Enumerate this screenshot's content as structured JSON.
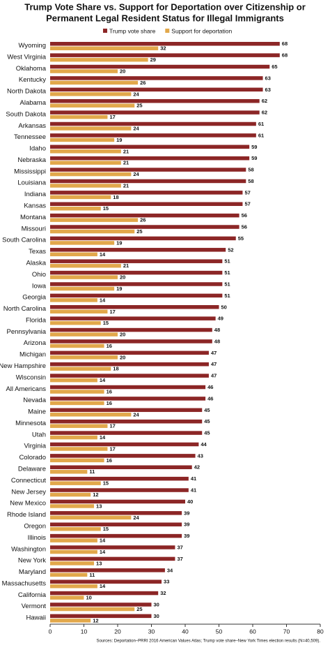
{
  "chart_data": {
    "type": "hbar",
    "title": [
      "Trump Vote Share vs. Support for Deportation over Citizenship or",
      "Permanent Legal Resident Status for Illegal Immigrants"
    ],
    "categories": [
      "Wyoming",
      "West Virginia",
      "Oklahoma",
      "Kentucky",
      "North Dakota",
      "Alabama",
      "South Dakota",
      "Arkansas",
      "Tennessee",
      "Idaho",
      "Nebraska",
      "Mississippi",
      "Louisiana",
      "Indiana",
      "Kansas",
      "Montana",
      "Missouri",
      "South Carolina",
      "Texas",
      "Alaska",
      "Ohio",
      "Iowa",
      "Georgia",
      "North Carolina",
      "Florida",
      "Pennsylvania",
      "Arizona",
      "Michigan",
      "New Hampshire",
      "Wisconsin",
      "All Americans",
      "Nevada",
      "Maine",
      "Minnesota",
      "Utah",
      "Virginia",
      "Colorado",
      "Delaware",
      "Connecticut",
      "New Jersey",
      "New Mexico",
      "Rhode Island",
      "Oregon",
      "Illinois",
      "Washington",
      "New York",
      "Maryland",
      "Massachusetts",
      "California",
      "Vermont",
      "Hawaii"
    ],
    "series": [
      {
        "name": "Trump vote share",
        "color": "#8c2626",
        "values": [
          68,
          68,
          65,
          63,
          63,
          62,
          62,
          61,
          61,
          59,
          59,
          58,
          58,
          57,
          57,
          56,
          56,
          55,
          52,
          51,
          51,
          51,
          51,
          50,
          49,
          48,
          48,
          47,
          47,
          47,
          46,
          46,
          45,
          45,
          45,
          44,
          43,
          42,
          41,
          41,
          40,
          39,
          39,
          39,
          37,
          37,
          34,
          33,
          32,
          30,
          30
        ]
      },
      {
        "name": "Support for deportation",
        "color": "#e2a84b",
        "values": [
          32,
          29,
          20,
          26,
          24,
          25,
          17,
          24,
          19,
          21,
          21,
          24,
          21,
          18,
          15,
          26,
          25,
          19,
          14,
          21,
          20,
          19,
          14,
          17,
          15,
          20,
          16,
          20,
          18,
          14,
          16,
          16,
          24,
          17,
          14,
          17,
          16,
          11,
          15,
          12,
          13,
          24,
          15,
          14,
          14,
          13,
          11,
          14,
          10,
          25,
          12
        ]
      }
    ],
    "xlim": [
      0,
      80
    ],
    "xticks": [
      0,
      10,
      20,
      30,
      40,
      50,
      60,
      70,
      80
    ],
    "grid": false,
    "source": "Sources: Deportation–PRRI 2016 American Values Atlas; Trump vote share–New York Times election results (N=40,509)."
  }
}
